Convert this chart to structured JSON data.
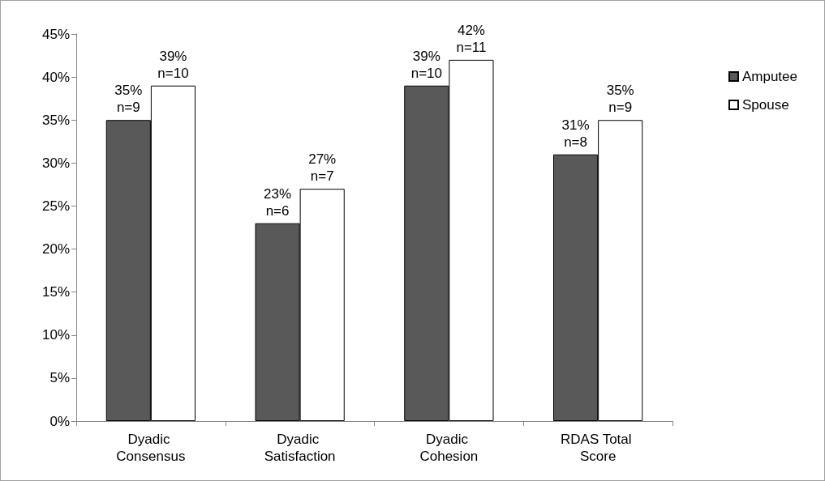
{
  "chart_data": {
    "type": "bar",
    "categories": [
      "Dyadic Consensus",
      "Dyadic Satisfaction",
      "Dyadic Cohesion",
      "RDAS Total Score"
    ],
    "series": [
      {
        "name": "Amputee",
        "color": "#595959",
        "values": [
          35,
          23,
          39,
          31
        ],
        "value_labels": [
          "35%\nn=9",
          "23%\nn=6",
          "39%\nn=10",
          "31%\nn=8"
        ]
      },
      {
        "name": "Spouse",
        "color": "#ffffff",
        "values": [
          39,
          27,
          42,
          35
        ],
        "value_labels": [
          "39%\nn=10",
          "27%\nn=7",
          "42%\nn=11",
          "35%\nn=9"
        ]
      }
    ],
    "ylim": [
      0,
      45
    ],
    "yticks": [
      {
        "value": 0,
        "label": "0%"
      },
      {
        "value": 5,
        "label": "5%"
      },
      {
        "value": 10,
        "label": "10%"
      },
      {
        "value": 15,
        "label": "15%"
      },
      {
        "value": 20,
        "label": "20%"
      },
      {
        "value": 25,
        "label": "25%"
      },
      {
        "value": 30,
        "label": "30%"
      },
      {
        "value": 35,
        "label": "35%"
      },
      {
        "value": 40,
        "label": "40%"
      },
      {
        "value": 45,
        "label": "45%"
      }
    ],
    "grid": false,
    "legend": "right"
  }
}
